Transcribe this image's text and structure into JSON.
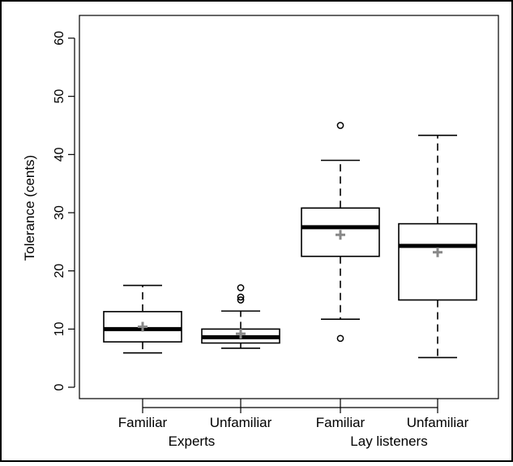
{
  "chart_data": {
    "type": "box",
    "ylabel": "Tolerance (cents)",
    "ylim": [
      0,
      60
    ],
    "yticks": [
      0,
      10,
      20,
      30,
      40,
      50,
      60
    ],
    "categories": [
      "Familiar",
      "Unfamiliar",
      "Familiar",
      "Unfamiliar"
    ],
    "groups": [
      {
        "label": "Experts",
        "categories": [
          0,
          1
        ]
      },
      {
        "label": "Lay listeners",
        "categories": [
          2,
          3
        ]
      }
    ],
    "boxes": [
      {
        "category": "Familiar",
        "group": "Experts",
        "whisker_low": 5.9,
        "q1": 7.8,
        "median": 10.0,
        "q3": 13.0,
        "whisker_high": 17.5,
        "mean": 10.4,
        "outliers": []
      },
      {
        "category": "Unfamiliar",
        "group": "Experts",
        "whisker_low": 6.7,
        "q1": 7.6,
        "median": 8.6,
        "q3": 10.0,
        "whisker_high": 13.1,
        "mean": 9.2,
        "outliers": [
          15.0,
          15.5,
          17.1
        ]
      },
      {
        "category": "Familiar",
        "group": "Lay listeners",
        "whisker_low": 11.7,
        "q1": 22.5,
        "median": 27.5,
        "q3": 30.8,
        "whisker_high": 39.0,
        "mean": 26.2,
        "outliers": [
          8.4,
          45.0
        ]
      },
      {
        "category": "Unfamiliar",
        "group": "Lay listeners",
        "whisker_low": 5.1,
        "q1": 15.0,
        "median": 24.3,
        "q3": 28.1,
        "whisker_high": 43.3,
        "mean": 23.2,
        "outliers": []
      }
    ],
    "grid": false,
    "colors": {
      "box": "#000000",
      "mean_marker": "#888888",
      "background": "#ffffff"
    }
  }
}
